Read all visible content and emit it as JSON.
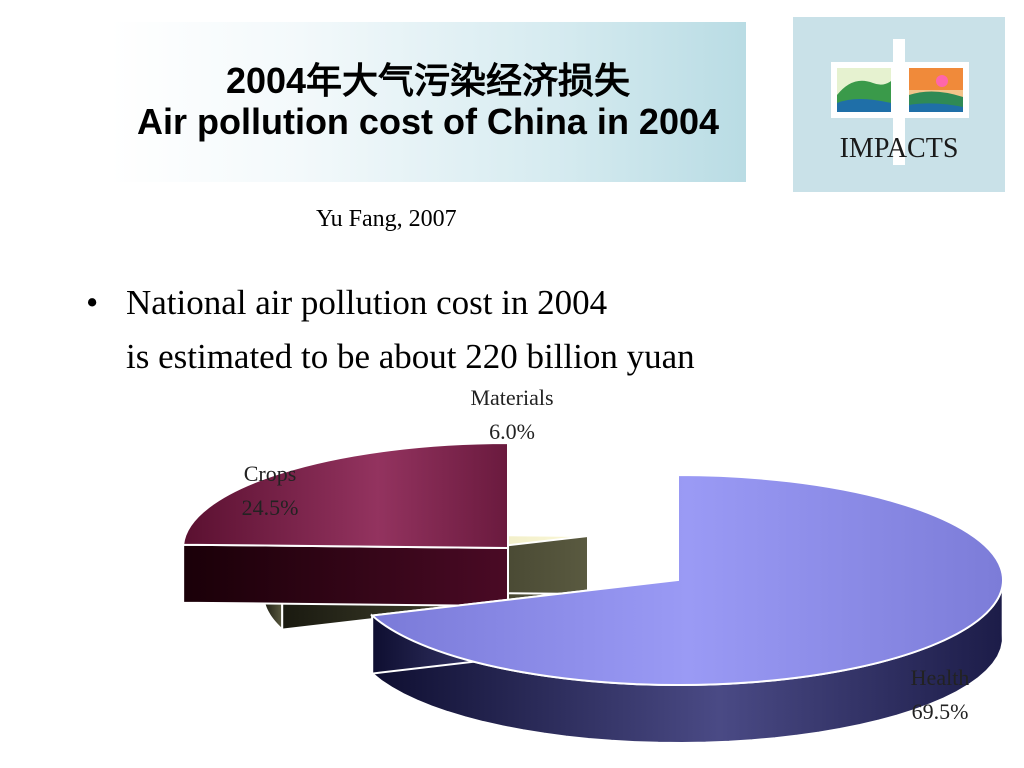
{
  "slide": {
    "title_cn": "2004年大气污染经济损失",
    "title_en": "Air pollution cost of China in 2004",
    "citation": "Yu Fang, 2007",
    "bullet": {
      "line1": "National air pollution cost in 2004",
      "line2": "is estimated to be about 220 billion yuan"
    },
    "logo": {
      "text": "IMPACTS"
    }
  },
  "chart_data": {
    "type": "pie",
    "categories": [
      "Health",
      "Materials",
      "Crops"
    ],
    "values": [
      69.5,
      6.0,
      24.5
    ],
    "value_labels": [
      "69.5%",
      "6.0%",
      "24.5%"
    ],
    "colors": [
      "#8a8af0",
      "#e9e6b0",
      "#8a2a55"
    ],
    "title": "",
    "legend": "none",
    "style": "3d-exploded"
  }
}
